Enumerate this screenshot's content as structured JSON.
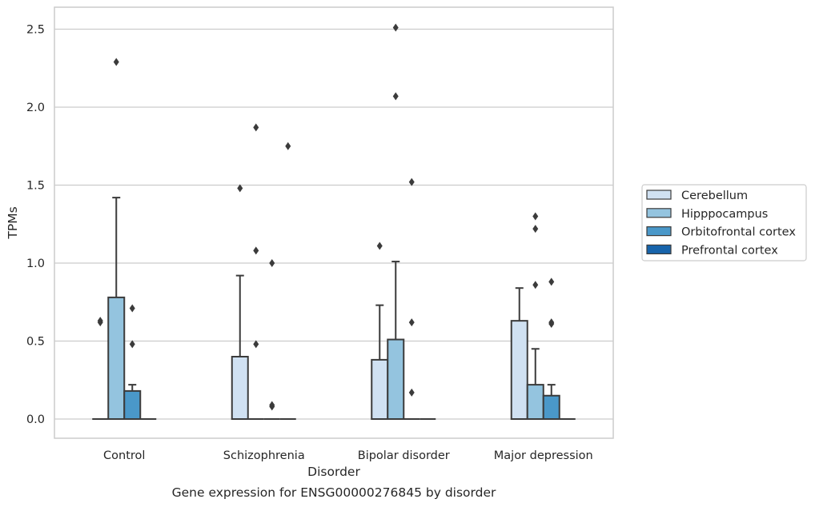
{
  "chart_data": {
    "type": "box",
    "title": "",
    "caption": "Gene expression for ENSG00000276845 by disorder",
    "xlabel": "Disorder",
    "ylabel": "TPMs",
    "ylim": [
      -0.12,
      2.64
    ],
    "yticks": [
      0.0,
      0.5,
      1.0,
      1.5,
      2.0,
      2.5
    ],
    "ytick_labels": [
      "0.0",
      "0.5",
      "1.0",
      "1.5",
      "2.0",
      "2.5"
    ],
    "grid": "horizontal",
    "legend_position": "right",
    "categories": [
      "Control",
      "Schizophrenia",
      "Bipolar disorder",
      "Major depression"
    ],
    "series": [
      {
        "name": "Cerebellum",
        "color": "#d0e1f2",
        "boxes": [
          {
            "q1": 0.0,
            "median": 0.0,
            "q3": 0.0,
            "whisker_low": 0.0,
            "whisker_high": 0.0,
            "outliers": [
              0.62,
              0.63
            ]
          },
          {
            "q1": 0.0,
            "median": 0.0,
            "q3": 0.4,
            "whisker_low": 0.0,
            "whisker_high": 0.92,
            "outliers": [
              1.48
            ]
          },
          {
            "q1": 0.0,
            "median": 0.0,
            "q3": 0.38,
            "whisker_low": 0.0,
            "whisker_high": 0.73,
            "outliers": [
              1.11
            ]
          },
          {
            "q1": 0.0,
            "median": 0.0,
            "q3": 0.63,
            "whisker_low": 0.0,
            "whisker_high": 0.84,
            "outliers": []
          }
        ]
      },
      {
        "name": "Hipppocampus",
        "color": "#94c4df",
        "boxes": [
          {
            "q1": 0.0,
            "median": 0.0,
            "q3": 0.78,
            "whisker_low": 0.0,
            "whisker_high": 1.42,
            "outliers": [
              2.29
            ]
          },
          {
            "q1": 0.0,
            "median": 0.0,
            "q3": 0.0,
            "whisker_low": 0.0,
            "whisker_high": 0.0,
            "outliers": [
              1.87,
              1.08,
              0.48
            ]
          },
          {
            "q1": 0.0,
            "median": 0.0,
            "q3": 0.51,
            "whisker_low": 0.0,
            "whisker_high": 1.01,
            "outliers": [
              2.51,
              2.07
            ]
          },
          {
            "q1": 0.0,
            "median": 0.0,
            "q3": 0.22,
            "whisker_low": 0.0,
            "whisker_high": 0.45,
            "outliers": [
              1.3,
              1.22,
              0.86
            ]
          }
        ]
      },
      {
        "name": "Orbitofrontal cortex",
        "color": "#4a98c9",
        "boxes": [
          {
            "q1": 0.0,
            "median": 0.0,
            "q3": 0.18,
            "whisker_low": 0.0,
            "whisker_high": 0.22,
            "outliers": [
              0.71,
              0.48
            ]
          },
          {
            "q1": 0.0,
            "median": 0.0,
            "q3": 0.0,
            "whisker_low": 0.0,
            "whisker_high": 0.0,
            "outliers": [
              1.0,
              0.08,
              0.09
            ]
          },
          {
            "q1": 0.0,
            "median": 0.0,
            "q3": 0.0,
            "whisker_low": 0.0,
            "whisker_high": 0.0,
            "outliers": [
              1.52,
              0.62,
              0.17
            ]
          },
          {
            "q1": 0.0,
            "median": 0.0,
            "q3": 0.15,
            "whisker_low": 0.0,
            "whisker_high": 0.22,
            "outliers": [
              0.88,
              0.61,
              0.62
            ]
          }
        ]
      },
      {
        "name": "Prefrontal cortex",
        "color": "#1764ab",
        "boxes": [
          {
            "q1": 0.0,
            "median": 0.0,
            "q3": 0.0,
            "whisker_low": 0.0,
            "whisker_high": 0.0,
            "outliers": []
          },
          {
            "q1": 0.0,
            "median": 0.0,
            "q3": 0.0,
            "whisker_low": 0.0,
            "whisker_high": 0.0,
            "outliers": [
              1.75
            ]
          },
          {
            "q1": 0.0,
            "median": 0.0,
            "q3": 0.0,
            "whisker_low": 0.0,
            "whisker_high": 0.0,
            "outliers": []
          },
          {
            "q1": 0.0,
            "median": 0.0,
            "q3": 0.0,
            "whisker_low": 0.0,
            "whisker_high": 0.0,
            "outliers": []
          }
        ]
      }
    ],
    "colors": {
      "grid": "#cccccc",
      "frame": "#cccccc",
      "box_edge": "#3b3b3b",
      "outlier": "#3b3b3b"
    }
  }
}
